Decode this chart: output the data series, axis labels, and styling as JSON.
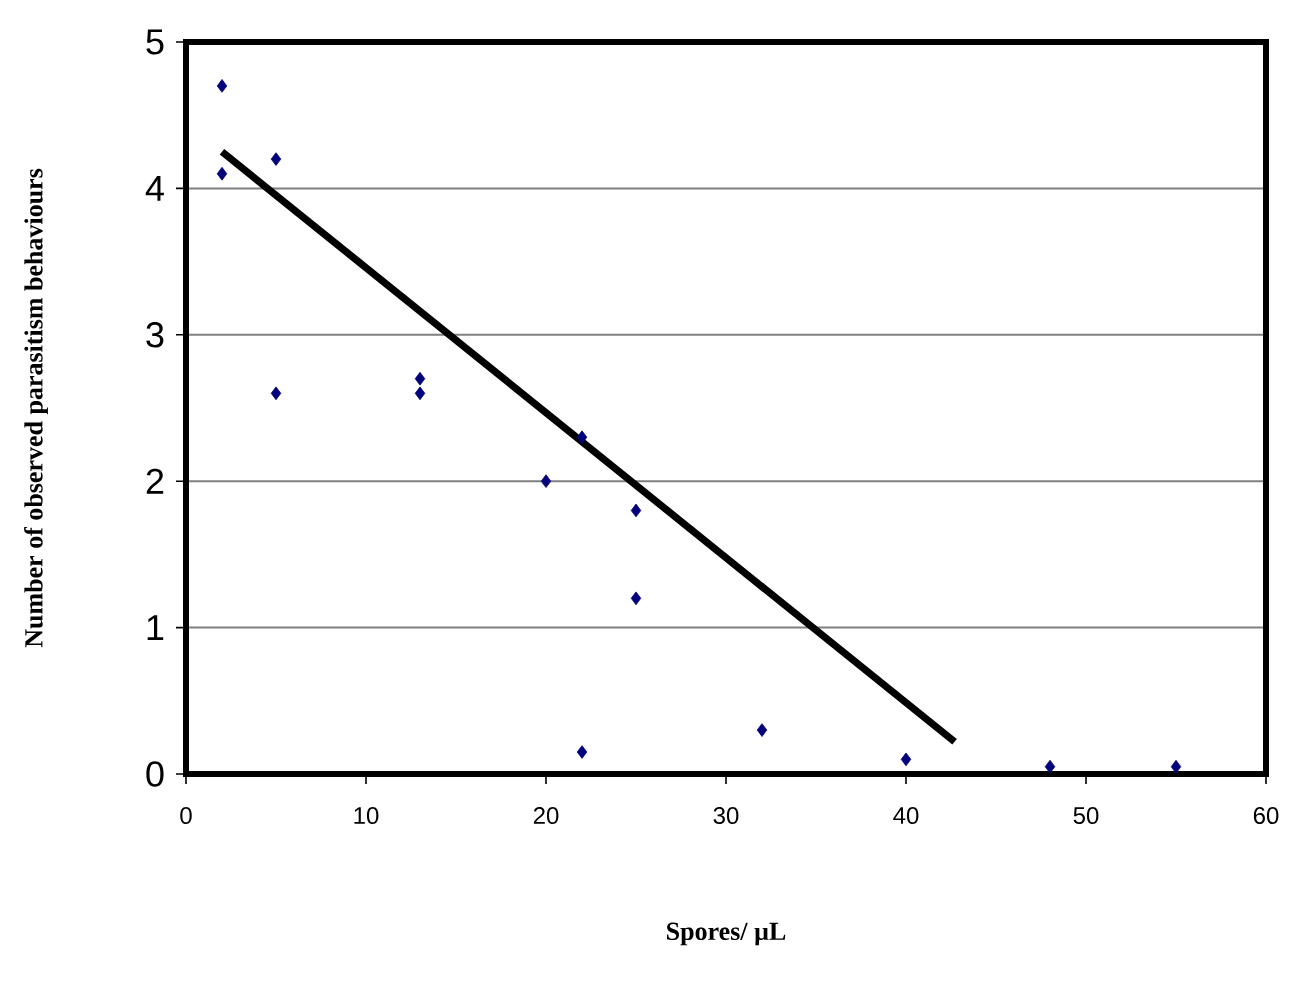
{
  "chart_data": {
    "type": "scatter",
    "xlabel": "Spores/ µL",
    "ylabel": "Number of observed parasitism behaviours",
    "xlim": [
      0,
      60
    ],
    "ylim": [
      0,
      5
    ],
    "xticks": [
      0,
      10,
      20,
      30,
      40,
      50,
      60
    ],
    "yticks": [
      0,
      1,
      2,
      3,
      4,
      5
    ],
    "grid": "y",
    "series": [
      {
        "marker": "diamond",
        "color": "#000080",
        "x": [
          2,
          2,
          5,
          5,
          13,
          13,
          20,
          22,
          25,
          25,
          22,
          32,
          40,
          48,
          55
        ],
        "values": [
          4.7,
          4.1,
          4.2,
          2.6,
          2.7,
          2.6,
          2.0,
          2.3,
          1.8,
          1.2,
          0.15,
          0.3,
          0.1,
          0.05,
          0.05
        ]
      },
      {
        "type": "line",
        "marker": "none",
        "color": "#000000",
        "x": [
          2,
          42.7
        ],
        "values": [
          4.25,
          0.22
        ]
      }
    ]
  }
}
